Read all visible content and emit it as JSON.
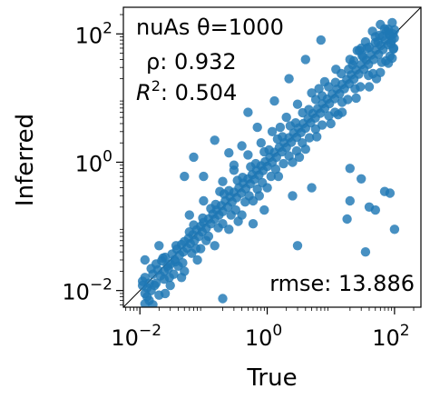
{
  "chart_data": {
    "type": "scatter",
    "title": "nuAs θ=1000",
    "xlabel": "True",
    "ylabel": "Inferred",
    "x_scale": "log",
    "y_scale": "log",
    "xlim": [
      0.0055,
      260
    ],
    "ylim": [
      0.0055,
      260
    ],
    "x_ticks": [
      {
        "value": 0.01,
        "base": "10",
        "exp": "−2"
      },
      {
        "value": 1,
        "base": "10",
        "exp": "0"
      },
      {
        "value": 100,
        "base": "10",
        "exp": "2"
      }
    ],
    "y_ticks": [
      {
        "value": 0.01,
        "base": "10",
        "exp": "−2"
      },
      {
        "value": 1,
        "base": "10",
        "exp": "0"
      },
      {
        "value": 100,
        "base": "10",
        "exp": "2"
      }
    ],
    "grid": false,
    "legend": "none",
    "reference_line": "y = x",
    "marker_color": "#1f77b4",
    "annotations": {
      "title": "nuAs θ=1000",
      "rho_label": "ρ: 0.932",
      "r2_label_var": "R",
      "r2_label_sup": "2",
      "r2_label_rest": ": 0.504",
      "rmse_label": "rmse: 13.886"
    },
    "series": [
      {
        "points": [
          [
            0.012,
            0.009
          ],
          [
            0.011,
            0.014
          ],
          [
            0.013,
            0.011
          ],
          [
            0.015,
            0.01
          ],
          [
            0.012,
            0.016
          ],
          [
            0.014,
            0.013
          ],
          [
            0.016,
            0.018
          ],
          [
            0.011,
            0.012
          ],
          [
            0.013,
            0.008
          ],
          [
            0.017,
            0.012
          ],
          [
            0.019,
            0.021
          ],
          [
            0.021,
            0.017
          ],
          [
            0.018,
            0.026
          ],
          [
            0.024,
            0.02
          ],
          [
            0.022,
            0.029
          ],
          [
            0.027,
            0.024
          ],
          [
            0.025,
            0.033
          ],
          [
            0.03,
            0.026
          ],
          [
            0.028,
            0.022
          ],
          [
            0.032,
            0.037
          ],
          [
            0.035,
            0.03
          ],
          [
            0.038,
            0.044
          ],
          [
            0.036,
            0.028
          ],
          [
            0.042,
            0.036
          ],
          [
            0.045,
            0.052
          ],
          [
            0.048,
            0.04
          ],
          [
            0.05,
            0.058
          ],
          [
            0.055,
            0.046
          ],
          [
            0.058,
            0.065
          ],
          [
            0.062,
            0.054
          ],
          [
            0.068,
            0.074
          ],
          [
            0.072,
            0.06
          ],
          [
            0.078,
            0.088
          ],
          [
            0.085,
            0.07
          ],
          [
            0.09,
            0.1
          ],
          [
            0.095,
            0.082
          ],
          [
            0.1,
            0.115
          ],
          [
            0.11,
            0.094
          ],
          [
            0.12,
            0.13
          ],
          [
            0.13,
            0.11
          ],
          [
            0.14,
            0.155
          ],
          [
            0.15,
            0.13
          ],
          [
            0.16,
            0.18
          ],
          [
            0.175,
            0.15
          ],
          [
            0.19,
            0.21
          ],
          [
            0.2,
            0.17
          ],
          [
            0.22,
            0.25
          ],
          [
            0.24,
            0.2
          ],
          [
            0.26,
            0.29
          ],
          [
            0.28,
            0.24
          ],
          [
            0.3,
            0.34
          ],
          [
            0.33,
            0.28
          ],
          [
            0.36,
            0.4
          ],
          [
            0.39,
            0.33
          ],
          [
            0.42,
            0.47
          ],
          [
            0.46,
            0.39
          ],
          [
            0.5,
            0.55
          ],
          [
            0.54,
            0.46
          ],
          [
            0.58,
            0.64
          ],
          [
            0.63,
            0.54
          ],
          [
            0.68,
            0.75
          ],
          [
            0.74,
            0.63
          ],
          [
            0.8,
            0.88
          ],
          [
            0.86,
            0.74
          ],
          [
            0.93,
            1.02
          ],
          [
            1.0,
            0.86
          ],
          [
            1.1,
            1.2
          ],
          [
            1.2,
            1.0
          ],
          [
            1.3,
            1.42
          ],
          [
            1.4,
            1.2
          ],
          [
            1.55,
            1.7
          ],
          [
            1.7,
            1.45
          ],
          [
            1.85,
            2.0
          ],
          [
            2.0,
            1.7
          ],
          [
            2.2,
            2.4
          ],
          [
            2.4,
            2.05
          ],
          [
            2.6,
            2.85
          ],
          [
            2.9,
            2.45
          ],
          [
            3.1,
            3.4
          ],
          [
            3.4,
            2.9
          ],
          [
            3.7,
            4.0
          ],
          [
            4.0,
            3.4
          ],
          [
            4.4,
            4.8
          ],
          [
            4.8,
            4.1
          ],
          [
            5.2,
            5.7
          ],
          [
            5.7,
            4.9
          ],
          [
            6.2,
            6.8
          ],
          [
            6.8,
            5.8
          ],
          [
            7.4,
            8.1
          ],
          [
            8.0,
            6.9
          ],
          [
            8.8,
            9.6
          ],
          [
            9.5,
            8.2
          ],
          [
            10.5,
            11.5
          ],
          [
            11.5,
            9.8
          ],
          [
            12.5,
            13.7
          ],
          [
            13.7,
            11.7
          ],
          [
            15,
            16.3
          ],
          [
            16.3,
            14
          ],
          [
            17.8,
            19.4
          ],
          [
            19.4,
            16.7
          ],
          [
            21,
            23
          ],
          [
            23,
            19.8
          ],
          [
            25,
            27.5
          ],
          [
            27.5,
            23.6
          ],
          [
            30,
            33
          ],
          [
            33,
            28
          ],
          [
            36,
            39
          ],
          [
            39,
            33.5
          ],
          [
            43,
            47
          ],
          [
            47,
            40
          ],
          [
            51,
            56
          ],
          [
            56,
            48
          ],
          [
            61,
            66
          ],
          [
            66,
            57
          ],
          [
            72,
            79
          ],
          [
            79,
            68
          ],
          [
            86,
            94
          ],
          [
            90,
            80
          ],
          [
            95,
            100
          ],
          [
            88,
            70
          ],
          [
            0.02,
            0.05
          ],
          [
            0.03,
            0.012
          ],
          [
            0.05,
            0.02
          ],
          [
            0.06,
            0.15
          ],
          [
            0.08,
            0.03
          ],
          [
            0.1,
            0.25
          ],
          [
            0.15,
            0.05
          ],
          [
            0.2,
            0.5
          ],
          [
            0.25,
            0.09
          ],
          [
            0.3,
            0.9
          ],
          [
            0.4,
            0.15
          ],
          [
            0.5,
            1.3
          ],
          [
            0.6,
            0.25
          ],
          [
            0.8,
            2.0
          ],
          [
            1.0,
            0.4
          ],
          [
            1.2,
            3.0
          ],
          [
            1.5,
            0.6
          ],
          [
            2.0,
            5.0
          ],
          [
            2.5,
            1.0
          ],
          [
            3.0,
            8.0
          ],
          [
            4.0,
            1.6
          ],
          [
            5.0,
            12
          ],
          [
            6.0,
            2.5
          ],
          [
            8.0,
            18
          ],
          [
            10,
            4.0
          ],
          [
            12,
            28
          ],
          [
            15,
            6.0
          ],
          [
            20,
            40
          ],
          [
            25,
            10
          ],
          [
            30,
            60
          ],
          [
            40,
            15
          ],
          [
            50,
            90
          ],
          [
            60,
            25
          ],
          [
            70,
            120
          ],
          [
            80,
            35
          ],
          [
            85,
            45
          ],
          [
            60,
            140
          ],
          [
            45,
            110
          ],
          [
            35,
            75
          ],
          [
            28,
            55
          ],
          [
            0.016,
            0.006
          ],
          [
            0.014,
            0.007
          ],
          [
            0.02,
            0.0085
          ],
          [
            0.024,
            0.015
          ],
          [
            0.034,
            0.018
          ],
          [
            0.04,
            0.024
          ],
          [
            0.065,
            0.038
          ],
          [
            0.07,
            0.105
          ],
          [
            0.11,
            0.06
          ],
          [
            0.13,
            0.19
          ],
          [
            0.17,
            0.095
          ],
          [
            0.21,
            0.32
          ],
          [
            0.27,
            0.15
          ],
          [
            0.34,
            0.52
          ],
          [
            0.45,
            0.24
          ],
          [
            0.55,
            0.85
          ],
          [
            0.7,
            0.38
          ],
          [
            0.9,
            1.45
          ],
          [
            1.15,
            0.6
          ],
          [
            1.45,
            2.3
          ],
          [
            1.8,
            0.95
          ],
          [
            2.3,
            3.7
          ],
          [
            2.9,
            1.5
          ],
          [
            3.6,
            5.9
          ],
          [
            4.6,
            2.4
          ],
          [
            5.8,
            9.5
          ],
          [
            7.3,
            3.8
          ],
          [
            9.2,
            15
          ],
          [
            11.6,
            6
          ],
          [
            14.6,
            24
          ],
          [
            18.4,
            9.5
          ],
          [
            23,
            38
          ],
          [
            29,
            15
          ],
          [
            37,
            60
          ],
          [
            46,
            24
          ],
          [
            58,
            95
          ],
          [
            73,
            38
          ],
          [
            92,
            150
          ],
          [
            97,
            60
          ],
          [
            100,
            115
          ],
          [
            0.012,
            0.03
          ],
          [
            0.025,
            0.009
          ],
          [
            0.045,
            0.016
          ],
          [
            0.09,
            0.045
          ],
          [
            0.18,
            0.35
          ],
          [
            0.35,
            0.12
          ],
          [
            0.75,
            0.3
          ],
          [
            1.6,
            3.5
          ],
          [
            3.2,
            1.2
          ],
          [
            6.5,
            14
          ],
          [
            13,
            5.5
          ],
          [
            26,
            55
          ],
          [
            52,
            20
          ],
          [
            75,
            110
          ],
          [
            92,
            42
          ],
          [
            65,
            92
          ],
          [
            55,
            75
          ],
          [
            40,
            62
          ],
          [
            32,
            44
          ],
          [
            22,
            33
          ],
          [
            0.015,
            0.022
          ],
          [
            0.018,
            0.013
          ],
          [
            0.023,
            0.032
          ],
          [
            0.029,
            0.016
          ],
          [
            0.037,
            0.05
          ],
          [
            0.047,
            0.027
          ],
          [
            0.06,
            0.082
          ],
          [
            0.076,
            0.045
          ],
          [
            0.097,
            0.135
          ],
          [
            0.12,
            0.07
          ],
          [
            0.155,
            0.22
          ],
          [
            0.2,
            0.11
          ],
          [
            0.25,
            0.36
          ],
          [
            0.32,
            0.18
          ],
          [
            0.41,
            0.58
          ],
          [
            0.52,
            0.3
          ],
          [
            0.66,
            0.95
          ],
          [
            0.84,
            0.48
          ],
          [
            1.07,
            1.55
          ],
          [
            1.36,
            0.78
          ],
          [
            1.73,
            2.5
          ],
          [
            2.2,
            1.25
          ],
          [
            2.8,
            4.1
          ],
          [
            3.55,
            2.0
          ],
          [
            4.5,
            6.6
          ],
          [
            5.75,
            3.3
          ],
          [
            7.3,
            10.8
          ],
          [
            9.3,
            5.3
          ],
          [
            11.8,
            17.5
          ],
          [
            15,
            8.6
          ],
          [
            19,
            28
          ],
          [
            24,
            14
          ],
          [
            31,
            46
          ],
          [
            39,
            22.5
          ],
          [
            50,
            73
          ],
          [
            63,
            36
          ],
          [
            80,
            118
          ],
          [
            96,
            58
          ],
          [
            99,
            86
          ],
          [
            83,
            98
          ],
          [
            0.05,
            0.6
          ],
          [
            0.1,
            0.6
          ],
          [
            0.3,
            0.75
          ],
          [
            0.25,
            1.4
          ],
          [
            0.4,
            1.8
          ],
          [
            0.7,
            3.5
          ],
          [
            0.9,
            0.18
          ],
          [
            2.5,
            0.3
          ],
          [
            5.0,
            0.4
          ],
          [
            20,
            0.8
          ],
          [
            30,
            0.55
          ],
          [
            70,
            0.35
          ],
          [
            85,
            0.33
          ],
          [
            40,
            0.2
          ],
          [
            20,
            0.25
          ],
          [
            18,
            0.13
          ],
          [
            50,
            0.18
          ],
          [
            35,
            0.04
          ],
          [
            100,
            0.09
          ],
          [
            0.07,
            1.2
          ],
          [
            0.15,
            2.2
          ],
          [
            1.3,
            9.0
          ],
          [
            2.2,
            20
          ],
          [
            4.0,
            40
          ],
          [
            7.0,
            80
          ],
          [
            0.5,
            6.0
          ],
          [
            3.0,
            0.05
          ],
          [
            0.2,
            0.0075
          ],
          [
            0.012,
            0.0062
          ],
          [
            0.6,
            0.11
          ]
        ]
      }
    ]
  }
}
